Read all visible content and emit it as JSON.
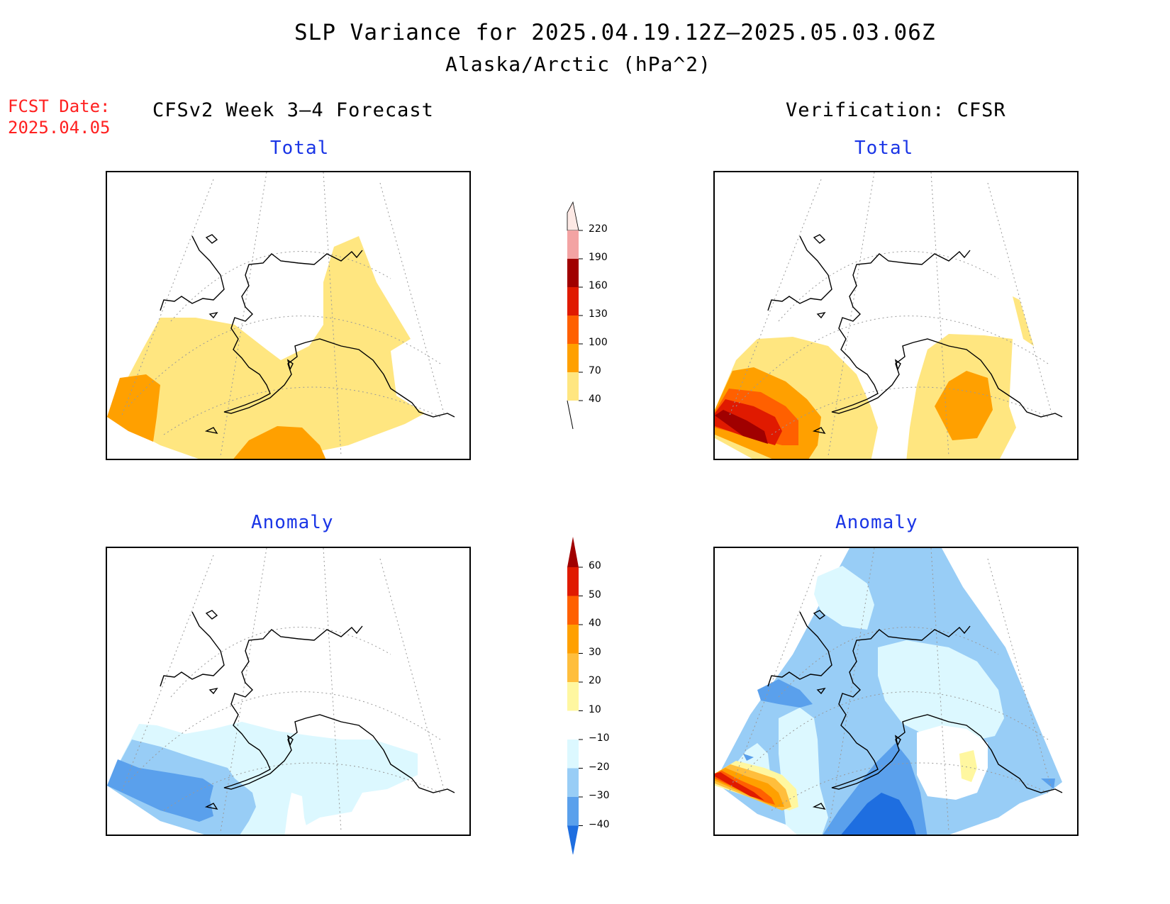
{
  "header": {
    "title": "SLP Variance for 2025.04.19.12Z–2025.05.03.06Z",
    "subtitle": "Alaska/Arctic (hPa^2)"
  },
  "fcst": {
    "label": "FCST Date:",
    "date": "2025.04.05"
  },
  "columns": {
    "left": "CFSv2 Week 3–4 Forecast",
    "right": "Verification: CFSR"
  },
  "panels": {
    "forecast_total": {
      "title": "Total"
    },
    "verification_total": {
      "title": "Total"
    },
    "forecast_anomaly": {
      "title": "Anomaly"
    },
    "verification_anomaly": {
      "title": "Anomaly"
    }
  },
  "colorbars": {
    "total": {
      "levels": [
        "220",
        "190",
        "160",
        "130",
        "100",
        "70",
        "40"
      ],
      "colors": [
        "#fde9e5",
        "#f3a3a3",
        "#a00000",
        "#e01a00",
        "#ff6000",
        "#ffa000",
        "#ffe680"
      ]
    },
    "anomaly": {
      "levels": [
        "60",
        "50",
        "40",
        "30",
        "20",
        "10",
        "−10",
        "−20",
        "−30",
        "−40"
      ],
      "colors": [
        "#a00000",
        "#e01a00",
        "#ff6000",
        "#ffa000",
        "#ffbe3c",
        "#fff7a0",
        "#ffffff",
        "#dcf8ff",
        "#98cdf6",
        "#5aa0ec",
        "#1e6ee0"
      ]
    }
  },
  "legend_colors": {
    "light_yellow": "#ffe680",
    "orange": "#ffa000",
    "dark_orange": "#ff6000",
    "red": "#e01a00",
    "dark_red": "#a00000",
    "pale_cyan": "#dcf8ff",
    "light_blue": "#98cdf6",
    "blue": "#5aa0ec",
    "dark_blue": "#1e6ee0",
    "pale_yellow": "#fff7a0"
  }
}
